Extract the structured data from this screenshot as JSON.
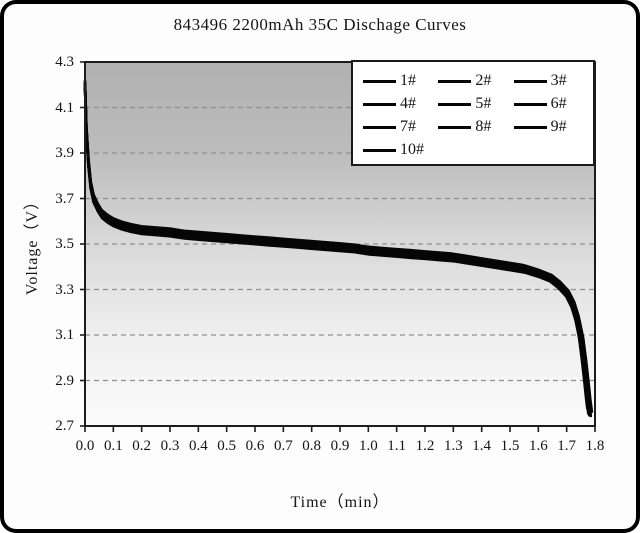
{
  "page": {
    "outer_border_color": "#000000",
    "panel_background": "#fdfdfd"
  },
  "chart_data": {
    "type": "line",
    "title": "843496 2200mAh 35C Dischage Curves",
    "xlabel": "Time（min）",
    "ylabel": "Voltage（V）",
    "xlim": [
      0.0,
      1.8
    ],
    "ylim": [
      2.7,
      4.3
    ],
    "x_ticks": [
      "0.0",
      "0.1",
      "0.2",
      "0.3",
      "0.4",
      "0.5",
      "0.6",
      "0.7",
      "0.8",
      "0.9",
      "1.0",
      "1.1",
      "1.2",
      "1.3",
      "1.4",
      "1.5",
      "1.6",
      "1.7",
      "1.8"
    ],
    "y_ticks": [
      "4.3",
      "4.1",
      "3.9",
      "3.7",
      "3.5",
      "3.3",
      "3.1",
      "2.9",
      "2.7"
    ],
    "grid": "horizontal-dashed",
    "legend_position": "top-right-inside",
    "colors": {
      "curve": "#060606",
      "grid": "#8f8f8f",
      "frame": "#1c1c1c",
      "plot_bg_top": "#b1b1b1",
      "plot_bg_mid": "#d9d9d9",
      "plot_bg_bottom": "#fbfbfb"
    },
    "base_curve": [
      [
        0.0,
        4.2
      ],
      [
        0.005,
        4.0
      ],
      [
        0.012,
        3.86
      ],
      [
        0.02,
        3.76
      ],
      [
        0.03,
        3.7
      ],
      [
        0.045,
        3.66
      ],
      [
        0.06,
        3.63
      ],
      [
        0.08,
        3.61
      ],
      [
        0.1,
        3.595
      ],
      [
        0.13,
        3.58
      ],
      [
        0.16,
        3.57
      ],
      [
        0.2,
        3.56
      ],
      [
        0.25,
        3.555
      ],
      [
        0.3,
        3.55
      ],
      [
        0.35,
        3.54
      ],
      [
        0.4,
        3.535
      ],
      [
        0.45,
        3.53
      ],
      [
        0.5,
        3.525
      ],
      [
        0.55,
        3.52
      ],
      [
        0.6,
        3.515
      ],
      [
        0.65,
        3.51
      ],
      [
        0.7,
        3.505
      ],
      [
        0.75,
        3.5
      ],
      [
        0.8,
        3.495
      ],
      [
        0.85,
        3.49
      ],
      [
        0.9,
        3.485
      ],
      [
        0.95,
        3.48
      ],
      [
        1.0,
        3.47
      ],
      [
        1.05,
        3.465
      ],
      [
        1.1,
        3.46
      ],
      [
        1.15,
        3.455
      ],
      [
        1.2,
        3.45
      ],
      [
        1.25,
        3.445
      ],
      [
        1.3,
        3.44
      ],
      [
        1.35,
        3.43
      ],
      [
        1.4,
        3.42
      ],
      [
        1.45,
        3.41
      ],
      [
        1.5,
        3.4
      ],
      [
        1.55,
        3.39
      ],
      [
        1.6,
        3.37
      ],
      [
        1.64,
        3.35
      ],
      [
        1.67,
        3.32
      ],
      [
        1.7,
        3.28
      ],
      [
        1.72,
        3.23
      ],
      [
        1.735,
        3.17
      ],
      [
        1.75,
        3.08
      ],
      [
        1.76,
        2.98
      ],
      [
        1.77,
        2.87
      ],
      [
        1.775,
        2.81
      ],
      [
        1.78,
        2.76
      ]
    ],
    "series": [
      {
        "name": "1#",
        "dv": 0.0,
        "ts": 1.0
      },
      {
        "name": "2#",
        "dv": 0.012,
        "ts": 0.998
      },
      {
        "name": "3#",
        "dv": -0.01,
        "ts": 1.002
      },
      {
        "name": "4#",
        "dv": 0.018,
        "ts": 0.996
      },
      {
        "name": "5#",
        "dv": -0.016,
        "ts": 1.003
      },
      {
        "name": "6#",
        "dv": 0.006,
        "ts": 1.001
      },
      {
        "name": "7#",
        "dv": -0.006,
        "ts": 0.998
      },
      {
        "name": "8#",
        "dv": 0.014,
        "ts": 1.004
      },
      {
        "name": "9#",
        "dv": -0.013,
        "ts": 1.0
      },
      {
        "name": "10#",
        "dv": 0.003,
        "ts": 1.005
      }
    ]
  }
}
